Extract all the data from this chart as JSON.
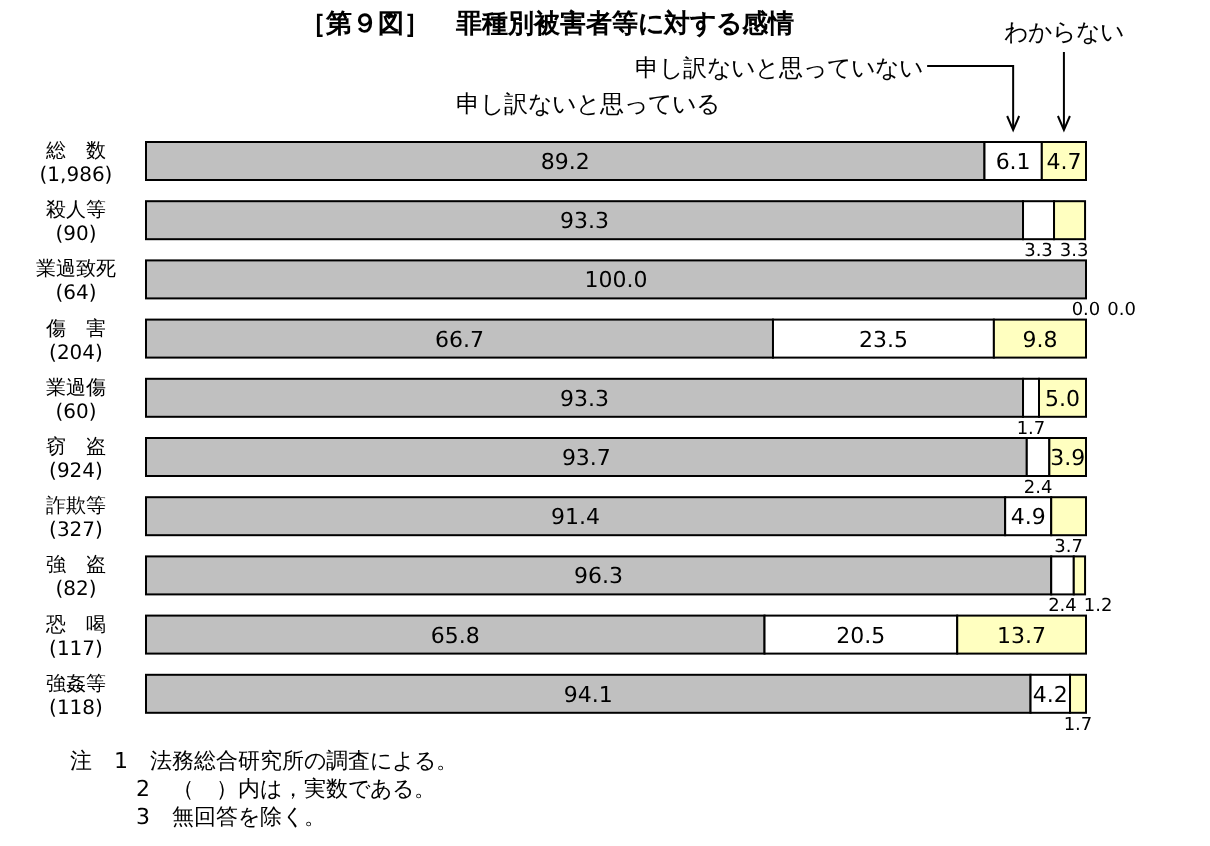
{
  "chart_data": {
    "type": "bar",
    "orientation": "horizontal",
    "stacked": true,
    "title": "［第９図］　罪種別被害者等に対する感情",
    "categories": [
      "総　数\n(1,986)",
      "殺人等\n(90)",
      "業過致死\n(64)",
      "傷　害\n(204)",
      "業過傷\n(60)",
      "窃　盗\n(924)",
      "詐欺等\n(327)",
      "強　盗\n(82)",
      "恐　喝\n(117)",
      "強姦等\n(118)"
    ],
    "series": [
      {
        "name": "申し訳ないと思っている",
        "color": "#c0c0c0",
        "values": [
          89.2,
          93.3,
          100.0,
          66.7,
          93.3,
          93.7,
          91.4,
          96.3,
          65.8,
          94.1
        ],
        "value_labels": [
          "89.2",
          "93.3",
          "100.0",
          "66.7",
          "93.3",
          "93.7",
          "91.4",
          "96.3",
          "65.8",
          "94.1"
        ]
      },
      {
        "name": "申し訳ないと思っていない",
        "color": "#ffffff",
        "values": [
          6.1,
          3.3,
          0.0,
          23.5,
          1.7,
          2.4,
          4.9,
          2.4,
          20.5,
          4.2
        ],
        "value_labels": [
          "6.1",
          "3.3",
          "0.0",
          "23.5",
          "1.7",
          "2.4",
          "4.9",
          "2.4",
          "20.5",
          "4.2"
        ]
      },
      {
        "name": "わからない",
        "color": "#ffffc0",
        "values": [
          4.7,
          3.3,
          0.0,
          9.8,
          5.0,
          3.9,
          3.7,
          1.2,
          13.7,
          1.7
        ],
        "value_labels": [
          "4.7",
          "3.3",
          "0.0",
          "9.8",
          "5.0",
          "3.9",
          "3.7",
          "1.2",
          "13.7",
          "1.7"
        ]
      }
    ],
    "xlim": [
      0,
      100
    ],
    "tick_labels": "y",
    "legend": "top",
    "annotations": [
      "注　1　法務総合研究所の調査による。",
      "2　（　）内は，実数である。",
      "3　無回答を除く。"
    ]
  }
}
